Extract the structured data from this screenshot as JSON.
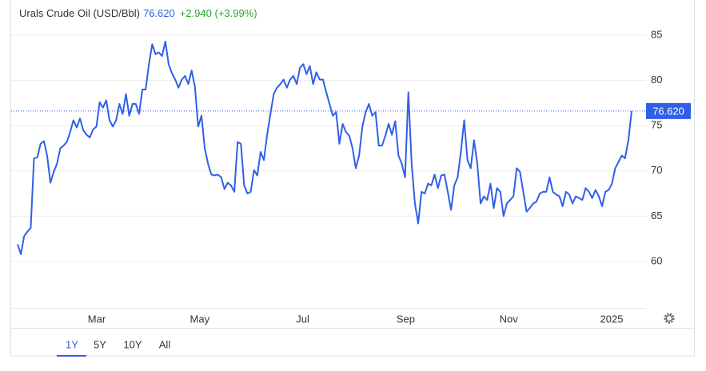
{
  "chart_data": {
    "type": "line",
    "title": "Urals Crude Oil (USD/Bbl)",
    "last": {
      "value": 76.62,
      "label": "76.620"
    },
    "change": "+2.940 (+3.99%)",
    "color": "#2f5fe8",
    "ylim": [
      55,
      88.2
    ],
    "yticks": [
      60,
      65,
      70,
      75,
      80,
      85
    ],
    "grid": true,
    "x_labels": [
      "Mar",
      "May",
      "Jul",
      "Sep",
      "Nov",
      "2025"
    ],
    "ranges": [
      "1Y",
      "5Y",
      "10Y",
      "All"
    ],
    "values": [
      61.9,
      60.8,
      62.8,
      63.3,
      63.7,
      71.4,
      71.5,
      73.0,
      73.3,
      71.7,
      68.7,
      69.9,
      70.8,
      72.5,
      72.8,
      73.2,
      74.3,
      75.6,
      74.8,
      75.8,
      74.5,
      74.0,
      73.7,
      74.6,
      74.9,
      77.6,
      77.0,
      77.8,
      75.6,
      74.9,
      75.6,
      77.4,
      76.3,
      78.5,
      76.1,
      77.4,
      77.4,
      76.3,
      79.0,
      79.0,
      81.8,
      84.0,
      82.9,
      83.1,
      82.7,
      84.3,
      81.8,
      80.8,
      80.1,
      79.2,
      80.1,
      80.5,
      79.6,
      81.1,
      79.3,
      74.9,
      76.1,
      72.5,
      70.8,
      69.6,
      69.5,
      69.6,
      69.3,
      68.0,
      68.7,
      68.4,
      67.7,
      73.2,
      73.0,
      68.4,
      67.5,
      67.7,
      70.1,
      69.5,
      72.1,
      71.2,
      74.0,
      76.3,
      78.5,
      79.2,
      79.6,
      80.1,
      79.2,
      80.1,
      80.5,
      79.6,
      81.4,
      81.8,
      80.7,
      81.6,
      79.6,
      80.9,
      80.1,
      80.1,
      78.7,
      77.4,
      76.1,
      76.5,
      73.0,
      75.2,
      74.3,
      73.9,
      72.5,
      70.3,
      71.7,
      74.9,
      76.5,
      77.4,
      76.1,
      76.5,
      72.8,
      72.8,
      73.9,
      75.2,
      74.0,
      75.5,
      71.7,
      70.8,
      69.3,
      78.7,
      70.8,
      66.4,
      64.2,
      67.7,
      67.5,
      68.6,
      68.4,
      69.6,
      68.1,
      69.5,
      69.6,
      67.7,
      65.7,
      68.4,
      69.3,
      72.1,
      75.6,
      71.2,
      70.3,
      73.4,
      70.8,
      66.4,
      67.2,
      66.8,
      68.6,
      65.9,
      68.1,
      67.7,
      65.0,
      66.4,
      66.8,
      67.2,
      70.3,
      69.9,
      67.7,
      65.5,
      65.9,
      66.4,
      66.6,
      67.5,
      67.7,
      67.7,
      69.3,
      67.7,
      67.4,
      67.2,
      66.1,
      67.7,
      67.4,
      66.4,
      67.2,
      67.0,
      66.8,
      68.1,
      67.7,
      67.0,
      67.9,
      67.2,
      66.1,
      67.7,
      67.9,
      68.6,
      70.3,
      71.0,
      71.7,
      71.4,
      73.4,
      76.62
    ]
  }
}
